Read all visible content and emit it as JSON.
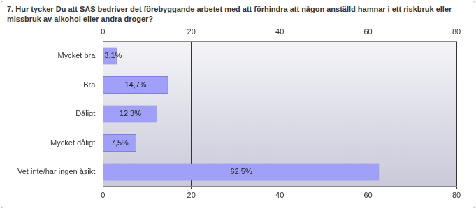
{
  "chart_data": {
    "type": "bar",
    "orientation": "horizontal",
    "title": "7. Hur tycker Du att SAS bedriver det förebyggande arbetet med att förhindra att någon anställd hamnar i ett riskbruk eller missbruk av alkohol eller andra droger?",
    "categories": [
      "Mycket bra",
      "Bra",
      "Dåligt",
      "Mycket dåligt",
      "Vet inte/har ingen åsikt"
    ],
    "values": [
      3.1,
      14.7,
      12.3,
      7.5,
      62.5
    ],
    "value_labels": [
      "3,1%",
      "14,7%",
      "12,3%",
      "7,5%",
      "62,5%"
    ],
    "data_labels": true,
    "color": "#a0a0f8",
    "xlim": [
      0,
      80
    ],
    "xticks": [
      0,
      20,
      40,
      60,
      80
    ],
    "grid": true
  }
}
